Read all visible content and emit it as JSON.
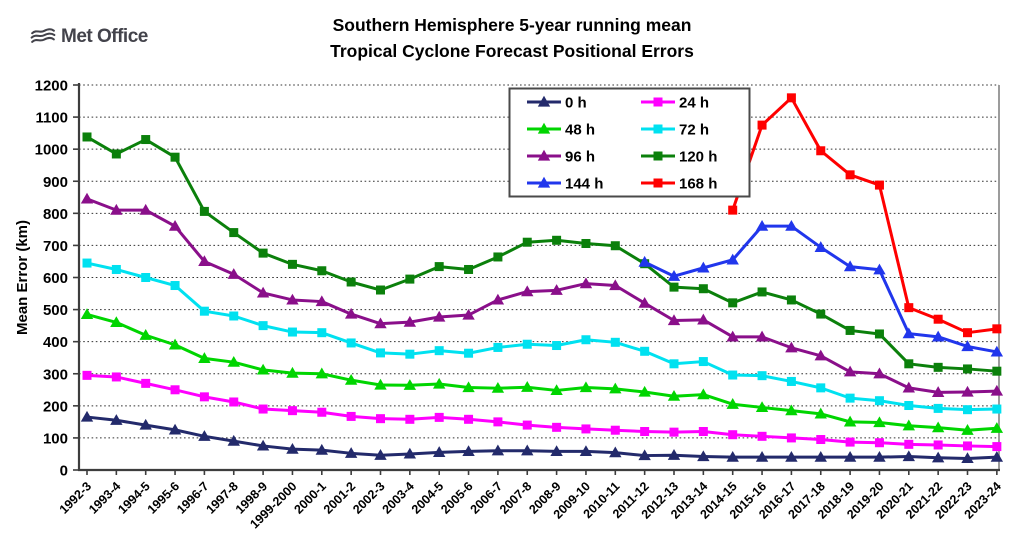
{
  "logo": {
    "text": "Met Office"
  },
  "title": {
    "line1": "Southern Hemisphere 5-year running mean",
    "line2": "Tropical Cyclone Forecast Positional Errors"
  },
  "chart_data": {
    "type": "line",
    "title": "Southern Hemisphere 5-year running mean Tropical Cyclone Forecast Positional Errors",
    "xlabel": "",
    "ylabel": "Mean Error (km)",
    "ylim": [
      0,
      1200
    ],
    "ytick_step": 100,
    "grid": "horizontal dotted gridlines every 100 km",
    "legend_position": "inside top-center, 2 columns, 4 rows",
    "categories": [
      "1992-3",
      "1993-4",
      "1994-5",
      "1995-6",
      "1996-7",
      "1997-8",
      "1998-9",
      "1999-2000",
      "2000-1",
      "2001-2",
      "2002-3",
      "2003-4",
      "2004-5",
      "2005-6",
      "2006-7",
      "2007-8",
      "2008-9",
      "2009-10",
      "2010-11",
      "2011-12",
      "2012-13",
      "2013-14",
      "2014-15",
      "2015-16",
      "2016-17",
      "2017-18",
      "2018-19",
      "2019-20",
      "2020-21",
      "2021-22",
      "2022-23",
      "2023-24"
    ],
    "series": [
      {
        "name": "0 h",
        "color": "#232A6B",
        "marker": "triangle",
        "values": [
          165,
          155,
          140,
          125,
          105,
          90,
          75,
          65,
          62,
          52,
          46,
          50,
          55,
          58,
          60,
          60,
          58,
          58,
          54,
          45,
          46,
          42,
          40,
          40,
          40,
          40,
          40,
          40,
          42,
          38,
          36,
          40
        ]
      },
      {
        "name": "24 h",
        "color": "#FF00FF",
        "marker": "square",
        "values": [
          295,
          290,
          270,
          250,
          228,
          212,
          190,
          185,
          180,
          167,
          160,
          158,
          164,
          158,
          150,
          140,
          133,
          128,
          124,
          120,
          118,
          120,
          110,
          105,
          100,
          95,
          87,
          85,
          80,
          78,
          75,
          73
        ]
      },
      {
        "name": "48 h",
        "color": "#00D500",
        "marker": "triangle",
        "values": [
          485,
          460,
          420,
          390,
          348,
          336,
          312,
          302,
          300,
          280,
          265,
          264,
          268,
          257,
          255,
          258,
          248,
          257,
          253,
          243,
          230,
          235,
          205,
          195,
          185,
          175,
          150,
          148,
          138,
          132,
          124,
          130
        ]
      },
      {
        "name": "72 h",
        "color": "#00E1F0",
        "marker": "square",
        "values": [
          645,
          625,
          600,
          575,
          495,
          480,
          450,
          430,
          428,
          396,
          365,
          361,
          372,
          364,
          382,
          392,
          388,
          406,
          398,
          370,
          331,
          338,
          296,
          294,
          276,
          256,
          224,
          216,
          201,
          192,
          188,
          190
        ]
      },
      {
        "name": "96 h",
        "color": "#8A0F8A",
        "marker": "triangle",
        "values": [
          845,
          810,
          810,
          760,
          650,
          610,
          552,
          530,
          525,
          486,
          456,
          461,
          477,
          483,
          530,
          556,
          560,
          581,
          575,
          520,
          466,
          468,
          415,
          415,
          381,
          356,
          306,
          300,
          256,
          242,
          243,
          246
        ]
      },
      {
        "name": "120 h",
        "color": "#0B800B",
        "marker": "square",
        "values": [
          1038,
          985,
          1030,
          975,
          806,
          740,
          676,
          641,
          621,
          586,
          561,
          595,
          634,
          625,
          664,
          710,
          716,
          706,
          699,
          643,
          570,
          565,
          521,
          555,
          530,
          486,
          435,
          424,
          331,
          320,
          315,
          308
        ]
      },
      {
        "name": "144 h",
        "color": "#2136EC",
        "marker": "triangle",
        "values": [
          null,
          null,
          null,
          null,
          null,
          null,
          null,
          null,
          null,
          null,
          null,
          null,
          null,
          null,
          null,
          null,
          null,
          null,
          null,
          648,
          604,
          630,
          655,
          760,
          760,
          694,
          634,
          624,
          425,
          415,
          385,
          368
        ]
      },
      {
        "name": "168 h",
        "color": "#FF0000",
        "marker": "square",
        "values": [
          null,
          null,
          null,
          null,
          null,
          null,
          null,
          null,
          null,
          null,
          null,
          null,
          null,
          null,
          null,
          null,
          null,
          null,
          null,
          null,
          null,
          null,
          810,
          1075,
          1160,
          995,
          920,
          888,
          506,
          470,
          428,
          440
        ]
      }
    ]
  }
}
